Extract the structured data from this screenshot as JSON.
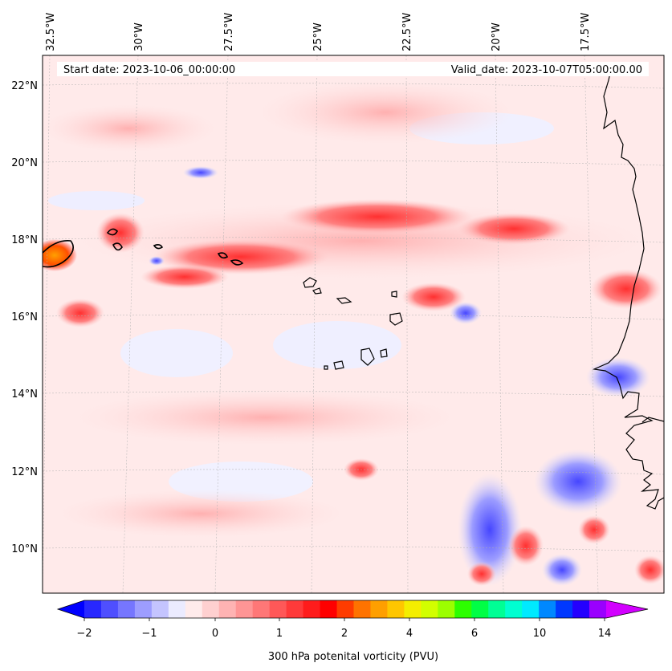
{
  "header": {
    "start_label": "Start date: 2023-10-06_00:00:00",
    "valid_label": "Valid_date: 2023-10-07T05:00:00.00"
  },
  "map": {
    "lon_labels": [
      "32.5°W",
      "30°W",
      "27.5°W",
      "25°W",
      "22.5°W",
      "20°W",
      "17.5°W"
    ],
    "lat_labels": [
      "22°N",
      "20°N",
      "18°N",
      "16°N",
      "14°N",
      "12°N",
      "10°N"
    ],
    "contour_level_pvu": 2
  },
  "colorbar": {
    "label": "300 hPa potenital vorticity (PVU)",
    "tick_labels": [
      "−2",
      "−1",
      "0",
      "1",
      "2",
      "4",
      "6",
      "10",
      "14"
    ],
    "colors": [
      "#0000ff",
      "#2828ff",
      "#4f4fff",
      "#7676ff",
      "#9d9dff",
      "#c4c4ff",
      "#ebebff",
      "#ffebeb",
      "#ffd0d0",
      "#ffb3b3",
      "#ff9595",
      "#ff7777",
      "#ff5858",
      "#ff3a3a",
      "#ff1c1c",
      "#ff0000",
      "#ff3c00",
      "#ff7300",
      "#ff9f00",
      "#ffc600",
      "#f4ee00",
      "#d2ff00",
      "#9cff00",
      "#2dff00",
      "#00ff45",
      "#00ff95",
      "#00ffd1",
      "#00eaff",
      "#0088ff",
      "#0038ff",
      "#2400ff",
      "#9a00ff",
      "#d200ff"
    ]
  },
  "colors": {
    "contour": "#000000",
    "coast": "#000000",
    "grid": "#b0b0b0"
  }
}
